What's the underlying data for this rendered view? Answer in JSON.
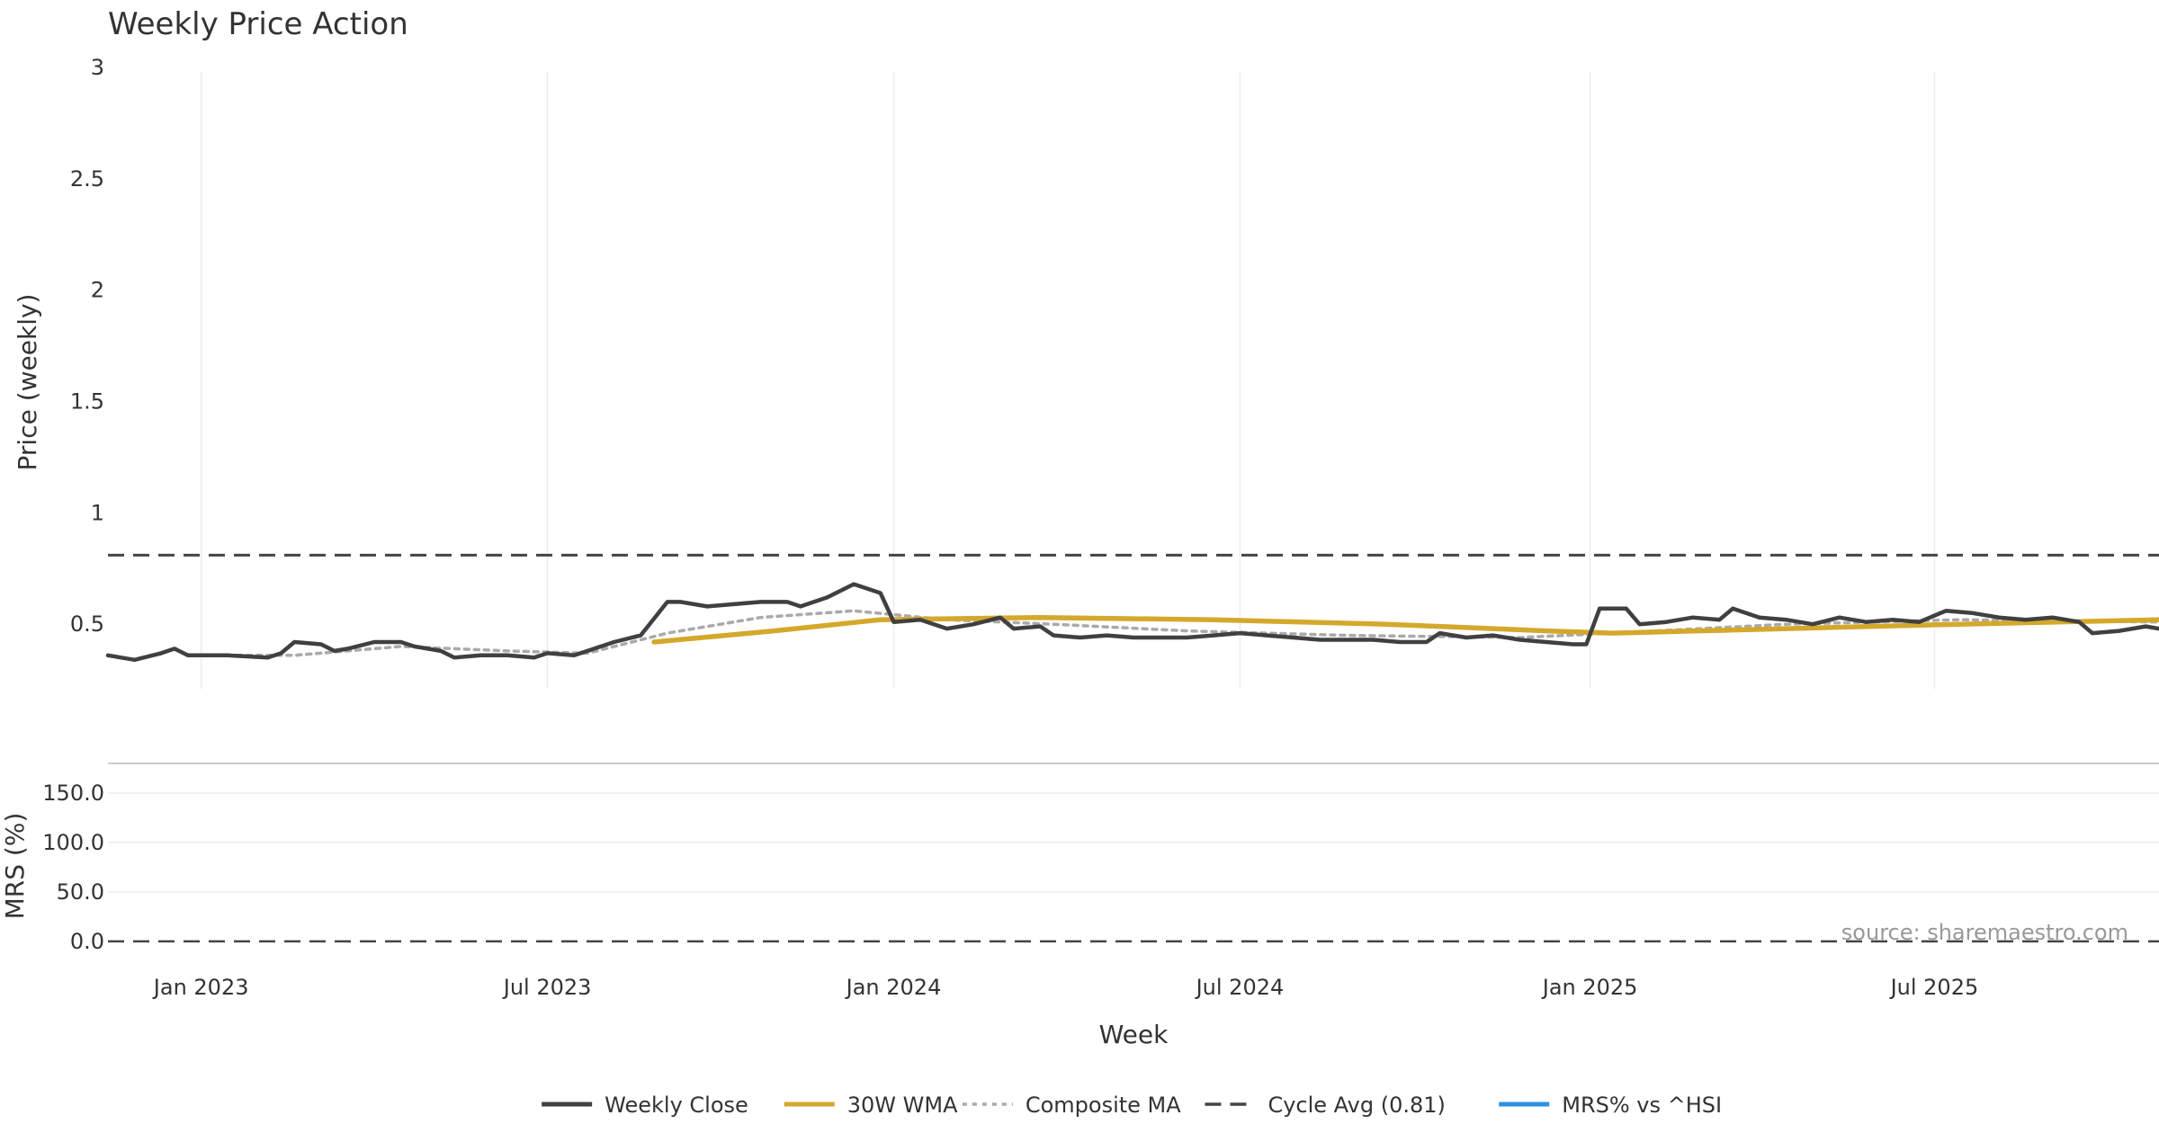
{
  "chart_data": {
    "type": "line",
    "title": "Weekly Price Action",
    "xlabel": "Week",
    "source": "source: sharemaestro.com",
    "x_range": [
      "2022-11-14",
      "2025-10-27"
    ],
    "x_ticks": [
      {
        "date": "2023-01-02",
        "label": "Jan 2023"
      },
      {
        "date": "2023-07-03",
        "label": "Jul 2023"
      },
      {
        "date": "2024-01-01",
        "label": "Jan 2024"
      },
      {
        "date": "2024-07-01",
        "label": "Jul 2024"
      },
      {
        "date": "2025-01-01",
        "label": "Jan 2025"
      },
      {
        "date": "2025-07-01",
        "label": "Jul 2025"
      }
    ],
    "legend_position": "bottom-center",
    "legend": [
      {
        "label": "Weekly Close",
        "style": "solid",
        "color": "#404040"
      },
      {
        "label": "30W WMA",
        "style": "solid",
        "color": "#D4A82C"
      },
      {
        "label": "Composite MA",
        "style": "dotted",
        "color": "#AAAAAA"
      },
      {
        "label": "Cycle Avg (0.81)",
        "style": "dashed",
        "color": "#444444"
      },
      {
        "label": "MRS% vs ^HSI",
        "style": "solid",
        "color": "#2B8FE3"
      }
    ],
    "price_panel": {
      "ylabel": "Price (weekly)",
      "ylim": [
        0.21,
        3.02
      ],
      "y_ticks": [
        {
          "value": 0.5,
          "label": "0.5"
        },
        {
          "value": 1,
          "label": "1"
        },
        {
          "value": 1.5,
          "label": "1.5"
        },
        {
          "value": 2,
          "label": "2"
        },
        {
          "value": 2.5,
          "label": "2.5"
        },
        {
          "value": 3,
          "label": "3"
        }
      ],
      "cycle_avg": 0.81,
      "series": [
        {
          "name": "Weekly Close",
          "color": "#404040",
          "points": [
            [
              "2022-11-14",
              0.36
            ],
            [
              "2022-11-28",
              0.34
            ],
            [
              "2022-12-12",
              0.37
            ],
            [
              "2022-12-19",
              0.39
            ],
            [
              "2022-12-26",
              0.36
            ],
            [
              "2023-01-16",
              0.36
            ],
            [
              "2023-02-06",
              0.35
            ],
            [
              "2023-02-13",
              0.37
            ],
            [
              "2023-02-20",
              0.42
            ],
            [
              "2023-03-06",
              0.41
            ],
            [
              "2023-03-13",
              0.38
            ],
            [
              "2023-03-20",
              0.39
            ],
            [
              "2023-04-03",
              0.42
            ],
            [
              "2023-04-17",
              0.42
            ],
            [
              "2023-04-24",
              0.4
            ],
            [
              "2023-05-08",
              0.38
            ],
            [
              "2023-05-15",
              0.35
            ],
            [
              "2023-05-29",
              0.36
            ],
            [
              "2023-06-12",
              0.36
            ],
            [
              "2023-06-26",
              0.35
            ],
            [
              "2023-07-03",
              0.37
            ],
            [
              "2023-07-17",
              0.36
            ],
            [
              "2023-07-24",
              0.38
            ],
            [
              "2023-08-07",
              0.42
            ],
            [
              "2023-08-21",
              0.45
            ],
            [
              "2023-09-04",
              0.6
            ],
            [
              "2023-09-11",
              0.6
            ],
            [
              "2023-09-25",
              0.58
            ],
            [
              "2023-10-09",
              0.59
            ],
            [
              "2023-10-23",
              0.6
            ],
            [
              "2023-11-06",
              0.6
            ],
            [
              "2023-11-13",
              0.58
            ],
            [
              "2023-11-27",
              0.62
            ],
            [
              "2023-12-11",
              0.68
            ],
            [
              "2023-12-25",
              0.64
            ],
            [
              "2024-01-01",
              0.51
            ],
            [
              "2024-01-15",
              0.52
            ],
            [
              "2024-01-29",
              0.48
            ],
            [
              "2024-02-12",
              0.5
            ],
            [
              "2024-02-26",
              0.53
            ],
            [
              "2024-03-04",
              0.48
            ],
            [
              "2024-03-18",
              0.49
            ],
            [
              "2024-03-25",
              0.45
            ],
            [
              "2024-04-08",
              0.44
            ],
            [
              "2024-04-22",
              0.45
            ],
            [
              "2024-05-06",
              0.44
            ],
            [
              "2024-05-20",
              0.44
            ],
            [
              "2024-06-03",
              0.44
            ],
            [
              "2024-06-17",
              0.45
            ],
            [
              "2024-07-01",
              0.46
            ],
            [
              "2024-07-15",
              0.45
            ],
            [
              "2024-07-29",
              0.44
            ],
            [
              "2024-08-12",
              0.43
            ],
            [
              "2024-08-26",
              0.43
            ],
            [
              "2024-09-09",
              0.43
            ],
            [
              "2024-09-23",
              0.42
            ],
            [
              "2024-10-07",
              0.42
            ],
            [
              "2024-10-14",
              0.46
            ],
            [
              "2024-10-28",
              0.44
            ],
            [
              "2024-11-11",
              0.45
            ],
            [
              "2024-11-25",
              0.43
            ],
            [
              "2024-12-09",
              0.42
            ],
            [
              "2024-12-23",
              0.41
            ],
            [
              "2024-12-30",
              0.41
            ],
            [
              "2025-01-06",
              0.57
            ],
            [
              "2025-01-20",
              0.57
            ],
            [
              "2025-01-27",
              0.5
            ],
            [
              "2025-02-10",
              0.51
            ],
            [
              "2025-02-24",
              0.53
            ],
            [
              "2025-03-10",
              0.52
            ],
            [
              "2025-03-17",
              0.57
            ],
            [
              "2025-03-31",
              0.53
            ],
            [
              "2025-04-14",
              0.52
            ],
            [
              "2025-04-28",
              0.5
            ],
            [
              "2025-05-12",
              0.53
            ],
            [
              "2025-05-26",
              0.51
            ],
            [
              "2025-06-09",
              0.52
            ],
            [
              "2025-06-23",
              0.51
            ],
            [
              "2025-07-07",
              0.56
            ],
            [
              "2025-07-21",
              0.55
            ],
            [
              "2025-08-04",
              0.53
            ],
            [
              "2025-08-18",
              0.52
            ],
            [
              "2025-09-01",
              0.53
            ],
            [
              "2025-09-15",
              0.51
            ],
            [
              "2025-09-22",
              0.46
            ],
            [
              "2025-10-06",
              0.47
            ],
            [
              "2025-10-20",
              0.49
            ],
            [
              "2025-10-27",
              0.48
            ]
          ]
        },
        {
          "name": "30W WMA",
          "color": "#D4A82C",
          "points": [
            [
              "2023-08-28",
              0.42
            ],
            [
              "2023-10-30",
              0.47
            ],
            [
              "2023-12-25",
              0.52
            ],
            [
              "2024-03-18",
              0.53
            ],
            [
              "2024-06-17",
              0.52
            ],
            [
              "2024-09-16",
              0.5
            ],
            [
              "2024-12-09",
              0.47
            ],
            [
              "2025-01-13",
              0.46
            ],
            [
              "2025-04-14",
              0.48
            ],
            [
              "2025-07-14",
              0.5
            ],
            [
              "2025-10-27",
              0.52
            ]
          ]
        },
        {
          "name": "Composite MA",
          "color": "#AAAAAA",
          "points": [
            [
              "2022-12-26",
              0.36
            ],
            [
              "2023-02-20",
              0.36
            ],
            [
              "2023-04-17",
              0.4
            ],
            [
              "2023-06-12",
              0.38
            ],
            [
              "2023-07-24",
              0.37
            ],
            [
              "2023-09-04",
              0.46
            ],
            [
              "2023-10-23",
              0.53
            ],
            [
              "2023-12-11",
              0.56
            ],
            [
              "2024-01-29",
              0.52
            ],
            [
              "2024-03-25",
              0.5
            ],
            [
              "2024-06-03",
              0.47
            ],
            [
              "2024-08-26",
              0.45
            ],
            [
              "2024-11-25",
              0.44
            ],
            [
              "2025-01-13",
              0.46
            ],
            [
              "2025-04-14",
              0.5
            ],
            [
              "2025-07-14",
              0.52
            ],
            [
              "2025-10-27",
              0.51
            ]
          ]
        }
      ]
    },
    "mrs_panel": {
      "ylabel": "MRS (%)",
      "ylim": [
        -12,
        170
      ],
      "y_ticks": [
        {
          "value": 0,
          "label": "0.0"
        },
        {
          "value": 50,
          "label": "50.0"
        },
        {
          "value": 100,
          "label": "100.0"
        },
        {
          "value": 150,
          "label": "150.0"
        }
      ],
      "zero_line": 0
    }
  }
}
